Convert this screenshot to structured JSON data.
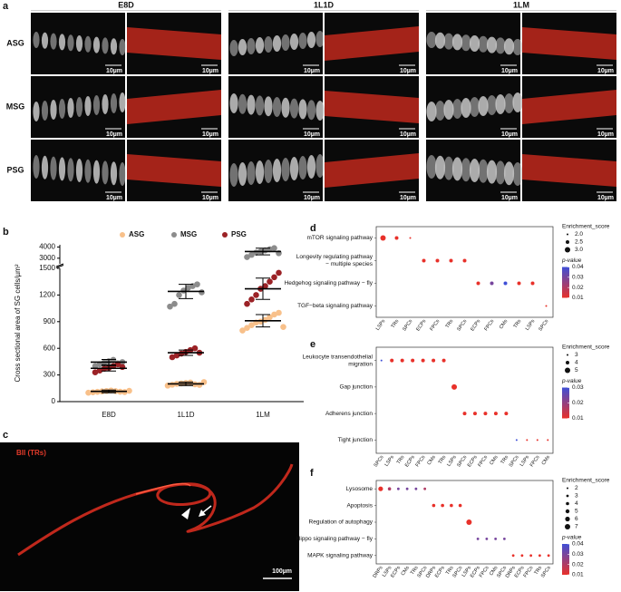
{
  "figure": {
    "panel_a": {
      "label": "a",
      "columns": [
        "E8D",
        "1L1D",
        "1LM"
      ],
      "rows": [
        "ASG",
        "MSG",
        "PSG"
      ],
      "scale_bar": "10µm"
    },
    "panel_c": {
      "label": "c",
      "stain": "BII (TRs)",
      "scale_bar": "100µm"
    }
  },
  "chart_data": [
    {
      "type": "strip",
      "panel": "b",
      "y_label": "Cross sectional area of SG cells/µm²",
      "categories": [
        "E8D",
        "1L1D",
        "1LM"
      ],
      "ylim": [
        0,
        1500
      ],
      "yticks": [
        0,
        300,
        600,
        900,
        1200,
        1500
      ],
      "y_upper_lim": [
        2500,
        4200
      ],
      "y_upper_ticks": [
        3000,
        4000
      ],
      "legend": "top",
      "series": [
        {
          "name": "ASG",
          "color": "#f8c08a",
          "values": [
            [
              100,
              105,
              110,
              115,
              120,
              125,
              118,
              112,
              108,
              122
            ],
            [
              180,
              190,
              200,
              205,
              210,
              215,
              195,
              188,
              220
            ],
            [
              800,
              830,
              860,
              890,
              900,
              920,
              950,
              980,
              1000,
              840
            ]
          ],
          "mean": [
            115,
            200,
            910
          ],
          "error": [
            15,
            20,
            70
          ]
        },
        {
          "name": "MSG",
          "color": "#8c8c8c",
          "values": [
            [
              400,
              420,
              440,
              455,
              470,
              430,
              445
            ],
            [
              1070,
              1100,
              1200,
              1250,
              1280,
              1300,
              1320,
              1230
            ],
            [
              3100,
              3300,
              3500,
              3600,
              3700,
              3800,
              3900,
              3450
            ]
          ],
          "mean": [
            445,
            1240,
            3600
          ],
          "error": [
            30,
            80,
            300
          ]
        },
        {
          "name": "PSG",
          "color": "#9b2226",
          "values": [
            [
              330,
              350,
              370,
              380,
              400,
              420,
              390
            ],
            [
              500,
              520,
              540,
              560,
              580,
              600,
              550
            ],
            [
              1100,
              1150,
              1200,
              1270,
              1300,
              1350,
              1400,
              1450
            ]
          ],
          "mean": [
            375,
            550,
            1270
          ],
          "error": [
            30,
            30,
            120
          ]
        }
      ]
    },
    {
      "type": "dot",
      "panel": "d",
      "categories": [
        "LSPs",
        "TRs",
        "SPCs",
        "ECPs",
        "FPCs",
        "TRs",
        "SPCs",
        "ECPs",
        "FPCs",
        "CMs",
        "TRs",
        "LSPs",
        "SPCs"
      ],
      "pathways": [
        [
          "mTOR signaling pathway"
        ],
        [
          "Longevity regulating pathway",
          "− multiple species"
        ],
        [
          "Hedgehog signaling pathway − fly"
        ],
        [
          "TGF−beta signaling pathway"
        ]
      ],
      "points": [
        {
          "x": 0,
          "y": 0,
          "size": 3,
          "p": 0.01
        },
        {
          "x": 1,
          "y": 0,
          "size": 2.5,
          "p": 0.01
        },
        {
          "x": 2,
          "y": 0,
          "size": 2,
          "p": 0.01
        },
        {
          "x": 3,
          "y": 1,
          "size": 2.5,
          "p": 0.01
        },
        {
          "x": 4,
          "y": 1,
          "size": 2.5,
          "p": 0.01
        },
        {
          "x": 5,
          "y": 1,
          "size": 2.5,
          "p": 0.01
        },
        {
          "x": 6,
          "y": 1,
          "size": 2.5,
          "p": 0.01
        },
        {
          "x": 7,
          "y": 2,
          "size": 2.5,
          "p": 0.01
        },
        {
          "x": 8,
          "y": 2,
          "size": 2.5,
          "p": 0.03
        },
        {
          "x": 9,
          "y": 2,
          "size": 2.5,
          "p": 0.04
        },
        {
          "x": 10,
          "y": 2,
          "size": 2.5,
          "p": 0.01
        },
        {
          "x": 11,
          "y": 2,
          "size": 2.5,
          "p": 0.01
        },
        {
          "x": 12,
          "y": 3,
          "size": 2,
          "p": 0.01
        }
      ],
      "size_title": "Enrichment_score",
      "size_ticks": [
        {
          "value": 2,
          "label": "2.0"
        },
        2.5,
        {
          "value": 3,
          "label": "3.0"
        }
      ],
      "color_title": "p-value",
      "color_ticks": [
        0.04,
        0.03,
        0.02,
        0.01
      ],
      "colors": [
        "#e8312a",
        "#3f4fd6"
      ]
    },
    {
      "type": "dot",
      "panel": "e",
      "categories": [
        "SPCs",
        "LSPs",
        "TRs",
        "ECPs",
        "FPCs",
        "CMs",
        "TRs",
        "LSPs",
        "SPCs",
        "ECPs",
        "FPCs",
        "CMs",
        "TRs",
        "SPCs",
        "LSPs",
        "FPCs",
        "CMs"
      ],
      "pathways": [
        [
          "Leukocyte transendothelial",
          "migration"
        ],
        [
          "Gap junction"
        ],
        [
          "Adherens junction"
        ],
        [
          "Tight junction"
        ]
      ],
      "points": [
        {
          "x": 0,
          "y": 0,
          "size": 3,
          "p": 0.03
        },
        {
          "x": 1,
          "y": 0,
          "size": 4,
          "p": 0.01
        },
        {
          "x": 2,
          "y": 0,
          "size": 4,
          "p": 0.01
        },
        {
          "x": 3,
          "y": 0,
          "size": 4,
          "p": 0.01
        },
        {
          "x": 4,
          "y": 0,
          "size": 4,
          "p": 0.01
        },
        {
          "x": 5,
          "y": 0,
          "size": 4,
          "p": 0.01
        },
        {
          "x": 6,
          "y": 0,
          "size": 4,
          "p": 0.01
        },
        {
          "x": 7,
          "y": 1,
          "size": 5,
          "p": 0.01
        },
        {
          "x": 8,
          "y": 2,
          "size": 4,
          "p": 0.01
        },
        {
          "x": 9,
          "y": 2,
          "size": 4,
          "p": 0.01
        },
        {
          "x": 10,
          "y": 2,
          "size": 4,
          "p": 0.01
        },
        {
          "x": 11,
          "y": 2,
          "size": 4,
          "p": 0.01
        },
        {
          "x": 12,
          "y": 2,
          "size": 4,
          "p": 0.01
        },
        {
          "x": 13,
          "y": 3,
          "size": 3,
          "p": 0.03
        },
        {
          "x": 14,
          "y": 3,
          "size": 3,
          "p": 0.01
        },
        {
          "x": 15,
          "y": 3,
          "size": 3,
          "p": 0.01
        },
        {
          "x": 16,
          "y": 3,
          "size": 3,
          "p": 0.01
        }
      ],
      "size_title": "Enrichment_score",
      "size_ticks": [
        3,
        4,
        5
      ],
      "color_title": "p-value",
      "color_ticks": [
        0.03,
        0.02,
        0.01
      ],
      "colors": [
        "#e8312a",
        "#3f4fd6"
      ]
    },
    {
      "type": "dot",
      "panel": "f",
      "categories": [
        "DRPs",
        "LSPs",
        "ECPs",
        "CMs",
        "TRs",
        "SPCs",
        "DRPs",
        "ECPs",
        "TRs",
        "SPCs",
        "LSPs",
        "ECPs",
        "FPCs",
        "CMs",
        "SPCs",
        "DRPs",
        "ECPs",
        "FPCs",
        "TRs",
        "SPCs"
      ],
      "pathways": [
        [
          "Lysosome"
        ],
        [
          "Apoptosis"
        ],
        [
          "Regulation of autophagy"
        ],
        [
          "Hippo signaling pathway − fly"
        ],
        [
          "MAPK signaling pathway"
        ]
      ],
      "points": [
        {
          "x": 0,
          "y": 0,
          "size": 6,
          "p": 0.01
        },
        {
          "x": 1,
          "y": 0,
          "size": 4,
          "p": 0.02
        },
        {
          "x": 2,
          "y": 0,
          "size": 3,
          "p": 0.03
        },
        {
          "x": 3,
          "y": 0,
          "size": 3,
          "p": 0.03
        },
        {
          "x": 4,
          "y": 0,
          "size": 3,
          "p": 0.03
        },
        {
          "x": 5,
          "y": 0,
          "size": 3,
          "p": 0.02
        },
        {
          "x": 6,
          "y": 1,
          "size": 4,
          "p": 0.01
        },
        {
          "x": 7,
          "y": 1,
          "size": 4,
          "p": 0.01
        },
        {
          "x": 8,
          "y": 1,
          "size": 4,
          "p": 0.01
        },
        {
          "x": 9,
          "y": 1,
          "size": 4,
          "p": 0.01
        },
        {
          "x": 10,
          "y": 2,
          "size": 7,
          "p": 0.01
        },
        {
          "x": 11,
          "y": 3,
          "size": 3,
          "p": 0.03
        },
        {
          "x": 12,
          "y": 3,
          "size": 3,
          "p": 0.03
        },
        {
          "x": 13,
          "y": 3,
          "size": 3,
          "p": 0.03
        },
        {
          "x": 14,
          "y": 3,
          "size": 3,
          "p": 0.03
        },
        {
          "x": 15,
          "y": 4,
          "size": 3,
          "p": 0.01
        },
        {
          "x": 16,
          "y": 4,
          "size": 3,
          "p": 0.01
        },
        {
          "x": 17,
          "y": 4,
          "size": 3,
          "p": 0.01
        },
        {
          "x": 18,
          "y": 4,
          "size": 3,
          "p": 0.01
        },
        {
          "x": 19,
          "y": 4,
          "size": 3,
          "p": 0.01
        }
      ],
      "size_title": "Enrichment_score",
      "size_ticks": [
        2,
        3,
        4,
        5,
        6,
        7
      ],
      "color_title": "p-value",
      "color_ticks": [
        0.04,
        0.03,
        0.02,
        0.01
      ],
      "colors": [
        "#e8312a",
        "#3f4fd6"
      ]
    }
  ]
}
